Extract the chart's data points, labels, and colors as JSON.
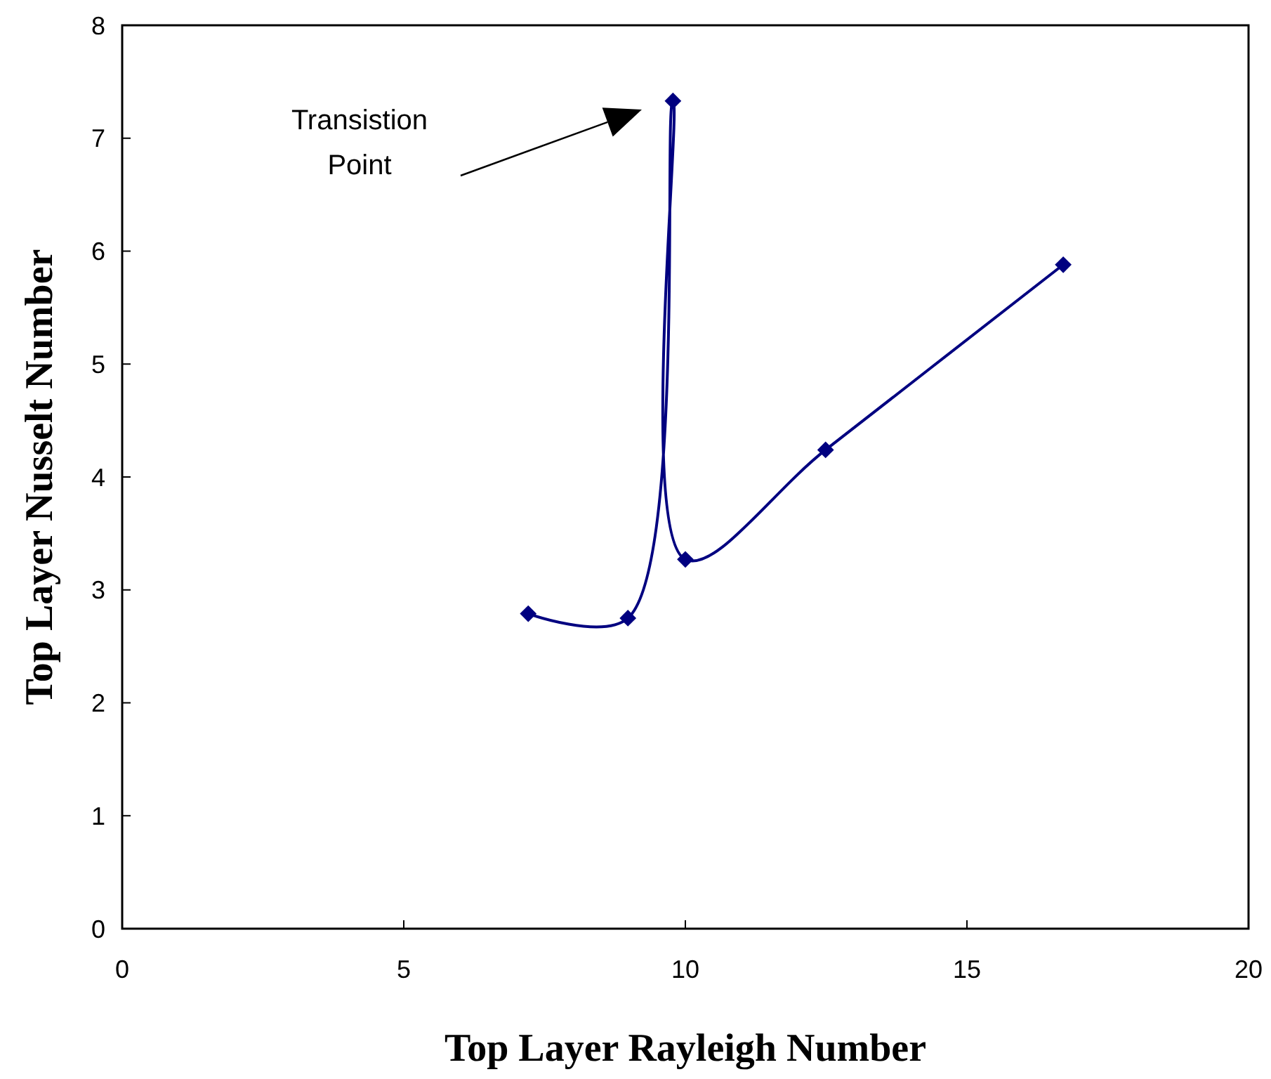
{
  "chart_data": {
    "type": "line",
    "xlabel": "Top Layer Rayleigh Number",
    "ylabel": "Top Layer Nusselt Number",
    "x": [
      7.21,
      8.98,
      9.78,
      10.0,
      12.49,
      16.71
    ],
    "series": [
      {
        "color": "#000080",
        "values": [
          2.79,
          2.75,
          7.33,
          3.27,
          4.24,
          5.88
        ]
      }
    ],
    "xlim": [
      0,
      20
    ],
    "xticks": [
      0,
      5,
      10,
      15,
      20
    ],
    "ylim": [
      0,
      8
    ],
    "yticks": [
      0,
      1,
      2,
      3,
      4,
      5,
      6,
      7,
      8
    ],
    "grid": false,
    "marker": "diamond",
    "line_style": "solid",
    "annotations": [
      "Transistion Point"
    ]
  }
}
